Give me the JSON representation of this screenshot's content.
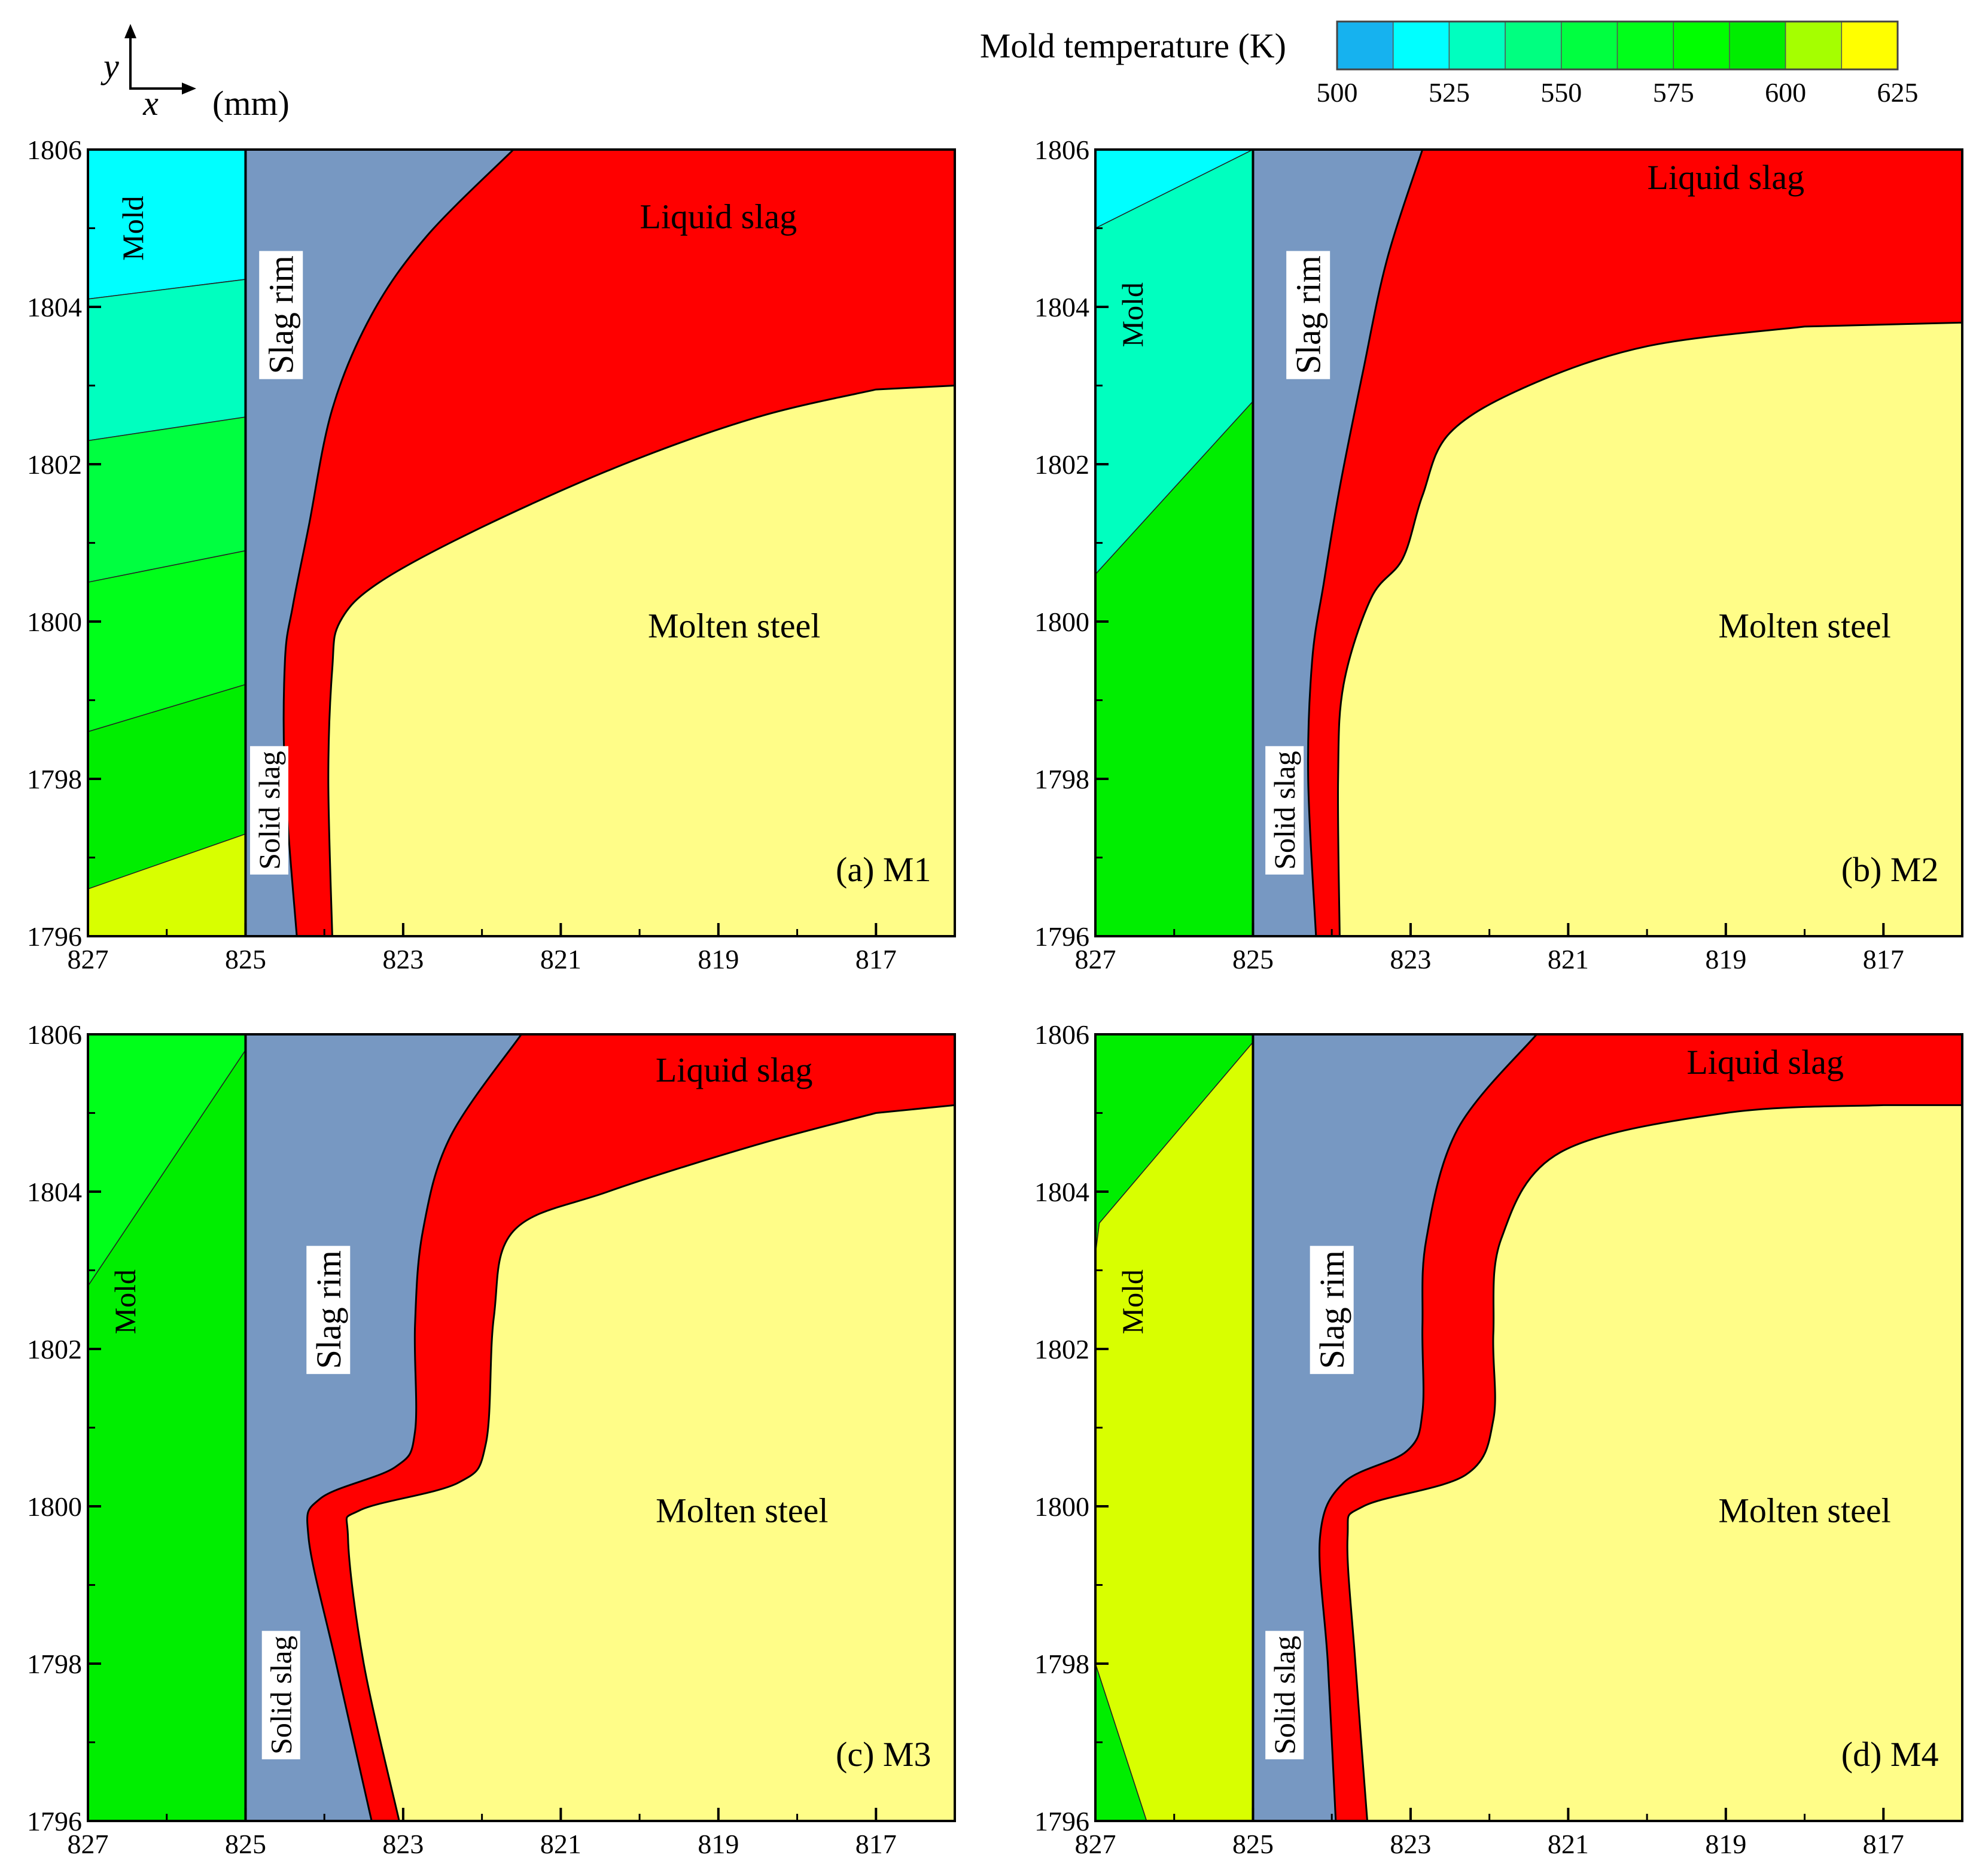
{
  "chart_data": {
    "type": "contour",
    "axis_indicator": {
      "y_label": "y",
      "x_label": "x",
      "unit": "(mm)"
    },
    "colorbar": {
      "title": "Mold temperature (K)",
      "tick_labels": [
        "500",
        "525",
        "550",
        "575",
        "600",
        "625"
      ],
      "range": [
        500,
        625
      ],
      "bands": [
        {
          "from": 500,
          "to": 512.5,
          "color": "#16b2ef"
        },
        {
          "from": 512.5,
          "to": 525,
          "color": "#00ffff"
        },
        {
          "from": 525,
          "to": 537.5,
          "color": "#00ffbf"
        },
        {
          "from": 537.5,
          "to": 550,
          "color": "#00ff80"
        },
        {
          "from": 550,
          "to": 562.5,
          "color": "#00ff40"
        },
        {
          "from": 562.5,
          "to": 575,
          "color": "#00ff1a"
        },
        {
          "from": 575,
          "to": 587.5,
          "color": "#00ff00"
        },
        {
          "from": 587.5,
          "to": 600,
          "color": "#00ee00"
        },
        {
          "from": 600,
          "to": 612.5,
          "color": "#a5ff00"
        },
        {
          "from": 612.5,
          "to": 625,
          "color": "#ffff00"
        }
      ]
    },
    "x_ticks": [
      "827",
      "825",
      "823",
      "821",
      "819",
      "817"
    ],
    "y_ticks": [
      "1796",
      "1798",
      "1800",
      "1802",
      "1804",
      "1806"
    ],
    "xlim": [
      827,
      816
    ],
    "ylim": [
      1796,
      1806
    ],
    "region_colors": {
      "slag_rim": "#7798c2",
      "liquid_slag": "#ff0000",
      "molten_steel": "#fffd88"
    },
    "panels": [
      {
        "id": "a",
        "caption": "(a) M1",
        "labels": {
          "mold": "Mold",
          "slag_rim": "Slag rim",
          "liquid_slag": "Liquid slag",
          "molten_steel": "Molten steel",
          "solid_slag": "Solid slag"
        },
        "mold_bands": [
          {
            "color": "#00ffff",
            "poly": [
              [
                827,
                1806
              ],
              [
                825,
                1806
              ],
              [
                825,
                1804.35
              ],
              [
                827,
                1804.1
              ]
            ]
          },
          {
            "color": "#00ffbf",
            "poly": [
              [
                827,
                1804.1
              ],
              [
                825,
                1804.35
              ],
              [
                825,
                1802.6
              ],
              [
                827,
                1802.3
              ]
            ]
          },
          {
            "color": "#00ff40",
            "poly": [
              [
                827,
                1802.3
              ],
              [
                825,
                1802.6
              ],
              [
                825,
                1800.9
              ],
              [
                827,
                1800.5
              ]
            ]
          },
          {
            "color": "#00ff1a",
            "poly": [
              [
                827,
                1800.5
              ],
              [
                825,
                1800.9
              ],
              [
                825,
                1799.2
              ],
              [
                827,
                1798.6
              ]
            ]
          },
          {
            "color": "#00ee00",
            "poly": [
              [
                827,
                1798.6
              ],
              [
                825,
                1799.2
              ],
              [
                825,
                1797.3
              ],
              [
                827,
                1796.6
              ]
            ]
          },
          {
            "color": "#d8ff00",
            "poly": [
              [
                827,
                1796.6
              ],
              [
                825,
                1797.3
              ],
              [
                825,
                1796
              ],
              [
                827,
                1796
              ]
            ]
          }
        ],
        "liquid_outer": [
          [
            824.35,
            1796
          ],
          [
            824.5,
            1798
          ],
          [
            824.5,
            1799.5
          ],
          [
            824.4,
            1800.2
          ],
          [
            824.2,
            1801.2
          ],
          [
            823.9,
            1802.7
          ],
          [
            823.4,
            1803.9
          ],
          [
            822.7,
            1804.9
          ],
          [
            821.6,
            1806
          ],
          [
            816,
            1806
          ],
          [
            816,
            1796
          ]
        ],
        "steel_outer": [
          [
            823.9,
            1796
          ],
          [
            823.95,
            1798
          ],
          [
            823.9,
            1799.4
          ],
          [
            823.8,
            1800
          ],
          [
            823.3,
            1800.5
          ],
          [
            822,
            1801.2
          ],
          [
            820.2,
            1802
          ],
          [
            818.5,
            1802.6
          ],
          [
            817,
            1802.95
          ],
          [
            816,
            1803
          ],
          [
            816,
            1796
          ]
        ]
      },
      {
        "id": "b",
        "caption": "(b) M2",
        "labels": {
          "mold": "Mold",
          "slag_rim": "Slag rim",
          "liquid_slag": "Liquid slag",
          "molten_steel": "Molten steel",
          "solid_slag": "Solid slag"
        },
        "mold_bands": [
          {
            "color": "#00ffff",
            "poly": [
              [
                827,
                1806
              ],
              [
                825,
                1806
              ],
              [
                827,
                1805
              ]
            ]
          },
          {
            "color": "#00ffbf",
            "poly": [
              [
                827,
                1805
              ],
              [
                825,
                1806
              ],
              [
                825,
                1802.8
              ],
              [
                827,
                1800.6
              ]
            ]
          },
          {
            "color": "#00ee00",
            "poly": [
              [
                827,
                1800.6
              ],
              [
                825,
                1802.8
              ],
              [
                825,
                1796
              ],
              [
                827,
                1796
              ]
            ]
          }
        ],
        "liquid_outer": [
          [
            824.2,
            1796
          ],
          [
            824.3,
            1798
          ],
          [
            824.25,
            1799.5
          ],
          [
            824.1,
            1800.5
          ],
          [
            823.9,
            1801.7
          ],
          [
            823.6,
            1803.2
          ],
          [
            823.3,
            1804.6
          ],
          [
            822.85,
            1806
          ],
          [
            816,
            1806
          ],
          [
            816,
            1796
          ]
        ],
        "steel_outer": [
          [
            823.9,
            1796
          ],
          [
            823.92,
            1798
          ],
          [
            823.85,
            1799.2
          ],
          [
            823.5,
            1800.3
          ],
          [
            823.1,
            1800.8
          ],
          [
            822.85,
            1801.6
          ],
          [
            822.5,
            1802.4
          ],
          [
            821.5,
            1803
          ],
          [
            820,
            1803.5
          ],
          [
            818,
            1803.75
          ],
          [
            816,
            1803.8
          ],
          [
            816,
            1796
          ]
        ]
      },
      {
        "id": "c",
        "caption": "(c) M3",
        "labels": {
          "mold": "Mold",
          "slag_rim": "Slag rim",
          "liquid_slag": "Liquid slag",
          "molten_steel": "Molten steel",
          "solid_slag": "Solid slag"
        },
        "mold_bands": [
          {
            "color": "#00ff1a",
            "poly": [
              [
                827,
                1806
              ],
              [
                825,
                1806
              ],
              [
                825,
                1805.8
              ],
              [
                827,
                1802.8
              ]
            ]
          },
          {
            "color": "#00ee00",
            "poly": [
              [
                827,
                1802.8
              ],
              [
                825,
                1805.8
              ],
              [
                825,
                1796
              ],
              [
                827,
                1796
              ]
            ]
          }
        ],
        "liquid_outer": [
          [
            823.4,
            1796
          ],
          [
            823.85,
            1798
          ],
          [
            824.2,
            1799.6
          ],
          [
            824.05,
            1800.1
          ],
          [
            823.1,
            1800.5
          ],
          [
            822.85,
            1800.95
          ],
          [
            822.85,
            1802.3
          ],
          [
            822.75,
            1803.5
          ],
          [
            822.4,
            1804.7
          ],
          [
            821.5,
            1806
          ],
          [
            816,
            1806
          ],
          [
            816,
            1796
          ]
        ],
        "steel_outer": [
          [
            823.05,
            1796
          ],
          [
            823.5,
            1798
          ],
          [
            823.7,
            1799.6
          ],
          [
            823.55,
            1799.95
          ],
          [
            822.3,
            1800.3
          ],
          [
            821.95,
            1800.8
          ],
          [
            821.85,
            1802.4
          ],
          [
            821.6,
            1803.5
          ],
          [
            820.4,
            1804
          ],
          [
            818.5,
            1804.6
          ],
          [
            817,
            1805
          ],
          [
            816,
            1805.1
          ],
          [
            816,
            1796
          ]
        ]
      },
      {
        "id": "d",
        "caption": "(d) M4",
        "labels": {
          "mold": "Mold",
          "slag_rim": "Slag rim",
          "liquid_slag": "Liquid slag",
          "molten_steel": "Molten steel",
          "solid_slag": "Solid slag"
        },
        "mold_bands": [
          {
            "color": "#00ee00",
            "poly": [
              [
                827,
                1806
              ],
              [
                825,
                1806
              ],
              [
                825,
                1805.9
              ],
              [
                826.95,
                1803.6
              ],
              [
                827,
                1803.2
              ]
            ]
          },
          {
            "color": "#d8ff00",
            "poly": [
              [
                827,
                1803.2
              ],
              [
                826.95,
                1803.6
              ],
              [
                825,
                1805.9
              ],
              [
                825,
                1796
              ],
              [
                826.35,
                1796
              ],
              [
                827,
                1798
              ]
            ]
          },
          {
            "color": "#00ee00",
            "poly": [
              [
                827,
                1798
              ],
              [
                826.35,
                1796
              ],
              [
                827,
                1796
              ]
            ]
          }
        ],
        "liquid_outer": [
          [
            823.95,
            1796
          ],
          [
            824.05,
            1798
          ],
          [
            824.15,
            1799.6
          ],
          [
            823.85,
            1800.3
          ],
          [
            823.05,
            1800.7
          ],
          [
            822.85,
            1801.2
          ],
          [
            822.85,
            1802.3
          ],
          [
            822.8,
            1803.4
          ],
          [
            822.4,
            1804.8
          ],
          [
            821.4,
            1806
          ],
          [
            816,
            1806
          ],
          [
            816,
            1796
          ]
        ],
        "steel_outer": [
          [
            823.55,
            1796
          ],
          [
            823.7,
            1798
          ],
          [
            823.8,
            1799.6
          ],
          [
            823.6,
            1800
          ],
          [
            822.3,
            1800.4
          ],
          [
            821.95,
            1801.1
          ],
          [
            821.95,
            1802.2
          ],
          [
            821.85,
            1803.4
          ],
          [
            821.1,
            1804.5
          ],
          [
            819,
            1805
          ],
          [
            817,
            1805.1
          ],
          [
            816,
            1805.1
          ],
          [
            816,
            1796
          ]
        ]
      }
    ]
  }
}
